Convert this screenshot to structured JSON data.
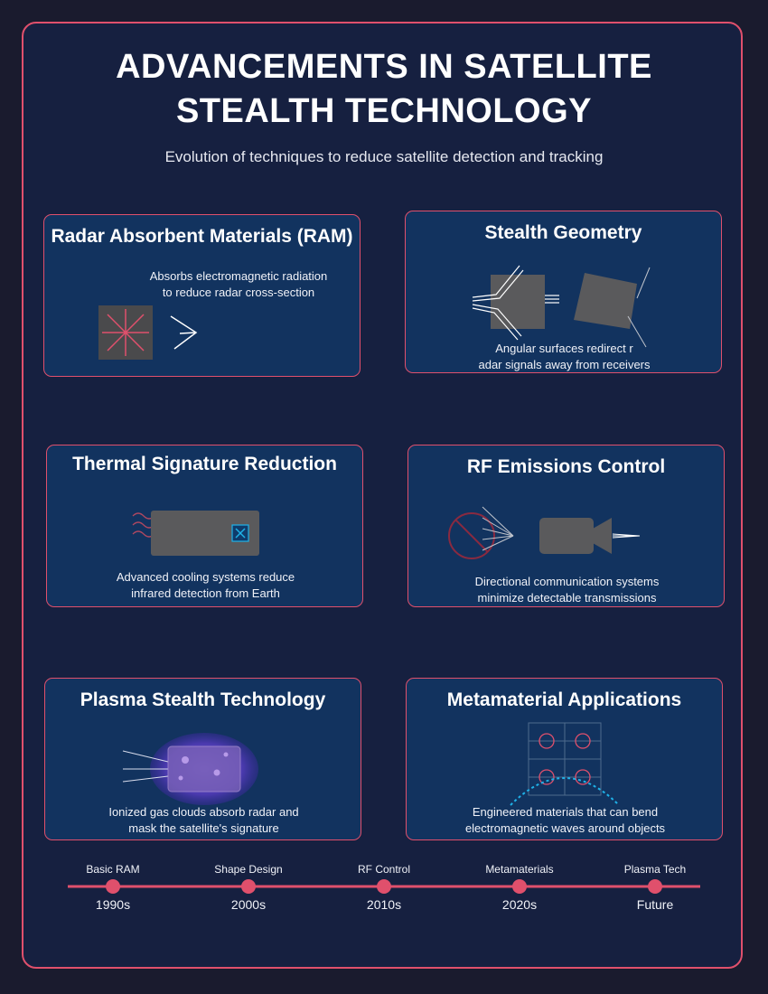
{
  "header": {
    "title_line1": "ADVANCEMENTS IN SATELLITE",
    "title_line2": "STEALTH TECHNOLOGY",
    "subtitle": "Evolution of techniques to reduce satellite detection and tracking"
  },
  "cards": {
    "ram": {
      "title": "Radar Absorbent Materials (RAM)",
      "desc_line1": "Absorbs electromagnetic radiation",
      "desc_line2": "to reduce radar cross-section"
    },
    "geometry": {
      "title": "Stealth Geometry",
      "desc_line1": "Angular surfaces redirect r",
      "desc_line2": "adar signals away from receivers"
    },
    "thermal": {
      "title": "Thermal Signature Reduction",
      "desc_line1": "Advanced cooling systems reduce",
      "desc_line2": "infrared detection from Earth"
    },
    "rf": {
      "title": "RF Emissions Control",
      "desc_line1": "Directional communication systems",
      "desc_line2": "minimize detectable transmissions"
    },
    "plasma": {
      "title": "Plasma Stealth Technology",
      "desc_line1": "Ionized gas clouds absorb radar and",
      "desc_line2": "mask the satellite's signature"
    },
    "meta": {
      "title": "Metamaterial Applications",
      "desc_line1": "Engineered materials that can bend",
      "desc_line2": "electromagnetic waves around objects"
    }
  },
  "timeline": {
    "events": [
      {
        "label": "Basic RAM",
        "year": "1990s"
      },
      {
        "label": "Shape Design",
        "year": "2000s"
      },
      {
        "label": "RF Control",
        "year": "2010s"
      },
      {
        "label": "Metamaterials",
        "year": "2020s"
      },
      {
        "label": "Plasma Tech",
        "year": "Future"
      }
    ]
  },
  "colors": {
    "accent": "#e0506c",
    "card_bg": "#12335f",
    "page_bg": "#1a1b2e",
    "metamaterial_wave": "#1fb2e8"
  }
}
